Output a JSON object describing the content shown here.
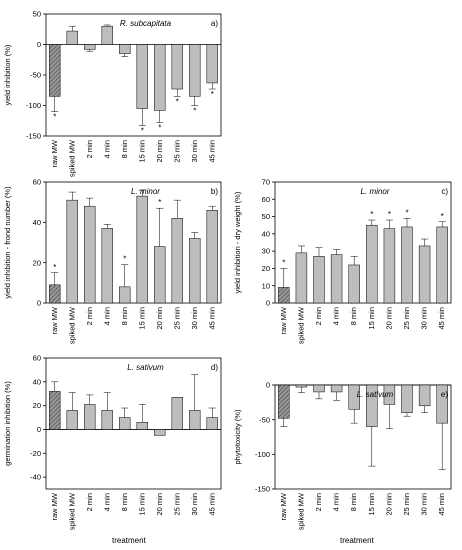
{
  "chart_data": [
    {
      "id": "a",
      "type": "bar",
      "title": "R. subcapitata",
      "panel_label": "a)",
      "ylabel": "yield inhibition (%)",
      "xlabel": "",
      "ylim": [
        -150,
        50
      ],
      "yticks": [
        -150,
        -100,
        -50,
        0,
        50
      ],
      "categories": [
        "raw MW",
        "spiked MW",
        "2 min",
        "4 min",
        "8 min",
        "15 min",
        "20 min",
        "25 min",
        "30 min",
        "45 min"
      ],
      "values": [
        -85,
        22,
        -8,
        30,
        -15,
        -105,
        -108,
        -73,
        -85,
        -63
      ],
      "errors": [
        25,
        8,
        3,
        2,
        5,
        28,
        20,
        12,
        15,
        10
      ],
      "significant": [
        true,
        false,
        false,
        false,
        false,
        true,
        true,
        true,
        true,
        true
      ],
      "hatched_first": true
    },
    {
      "id": "b",
      "type": "bar",
      "title": "L. minor",
      "panel_label": "b)",
      "ylabel": "yield inhibition - frond number (%)",
      "xlabel": "",
      "ylim": [
        0,
        60
      ],
      "yticks": [
        0,
        20,
        40,
        60
      ],
      "categories": [
        "raw MW",
        "spiked MW",
        "2 min",
        "4 min",
        "8 min",
        "15 min",
        "20 min",
        "25 min",
        "30 min",
        "45 min"
      ],
      "values": [
        9,
        51,
        48,
        37,
        8,
        53,
        28,
        42,
        32,
        46
      ],
      "errors": [
        6,
        4,
        4,
        2,
        11,
        3,
        19,
        9,
        3,
        2
      ],
      "significant": [
        true,
        false,
        false,
        false,
        true,
        false,
        true,
        false,
        false,
        false
      ],
      "hatched_first": true
    },
    {
      "id": "c",
      "type": "bar",
      "title": "L. minor",
      "panel_label": "c)",
      "ylabel": "yield inhibition - dry weight (%)",
      "xlabel": "",
      "ylim": [
        0,
        70
      ],
      "yticks": [
        0,
        10,
        20,
        30,
        40,
        50,
        60,
        70
      ],
      "categories": [
        "raw MW",
        "spiked MW",
        "2 min",
        "4 min",
        "8 min",
        "15 min",
        "20 min",
        "25 min",
        "30 min",
        "45 min"
      ],
      "values": [
        9,
        29,
        27,
        28,
        22,
        45,
        43,
        44,
        33,
        44
      ],
      "errors": [
        11,
        4,
        5,
        3,
        5,
        3,
        5,
        5,
        4,
        3
      ],
      "significant": [
        true,
        false,
        false,
        false,
        false,
        true,
        true,
        true,
        false,
        true
      ],
      "hatched_first": true
    },
    {
      "id": "d",
      "type": "bar",
      "title": "L. sativum",
      "panel_label": "d)",
      "ylabel": "germination inhibition (%)",
      "xlabel": "treatment",
      "ylim": [
        -50,
        60
      ],
      "yticks": [
        -40,
        -20,
        0,
        20,
        40,
        60
      ],
      "categories": [
        "raw MW",
        "spiked MW",
        "2 min",
        "4 min",
        "8 min",
        "15 min",
        "20 min",
        "25 min",
        "30 min",
        "45 min"
      ],
      "values": [
        32,
        16,
        21,
        16,
        10,
        6,
        -5,
        27,
        16,
        10
      ],
      "errors": [
        8,
        15,
        8,
        15,
        8,
        15,
        0,
        0,
        30,
        8
      ],
      "significant": [
        false,
        false,
        false,
        false,
        false,
        false,
        false,
        false,
        false,
        false
      ],
      "hatched_first": true
    },
    {
      "id": "e",
      "type": "bar",
      "title": "L. sativum",
      "panel_label": "e)",
      "ylabel": "phytotoxicity (%)",
      "xlabel": "treatment",
      "ylim": [
        -150,
        0
      ],
      "yticks": [
        -150,
        -100,
        -50,
        0
      ],
      "categories": [
        "raw MW",
        "spiked MW",
        "2 min",
        "4 min",
        "8 min",
        "15 min",
        "20 min",
        "25 min",
        "30 min",
        "45 min"
      ],
      "values": [
        -48,
        -3,
        -10,
        -10,
        -35,
        -60,
        -28,
        -40,
        -30,
        -55
      ],
      "errors": [
        12,
        8,
        10,
        12,
        20,
        57,
        35,
        5,
        10,
        67
      ],
      "significant": [
        false,
        false,
        false,
        false,
        false,
        false,
        false,
        false,
        false,
        false
      ],
      "hatched_first": true
    }
  ],
  "significance_marker": "*",
  "colors": {
    "bar_fill": "#bdbdbd",
    "bar_stroke": "#000000",
    "hatch": "#555555"
  }
}
